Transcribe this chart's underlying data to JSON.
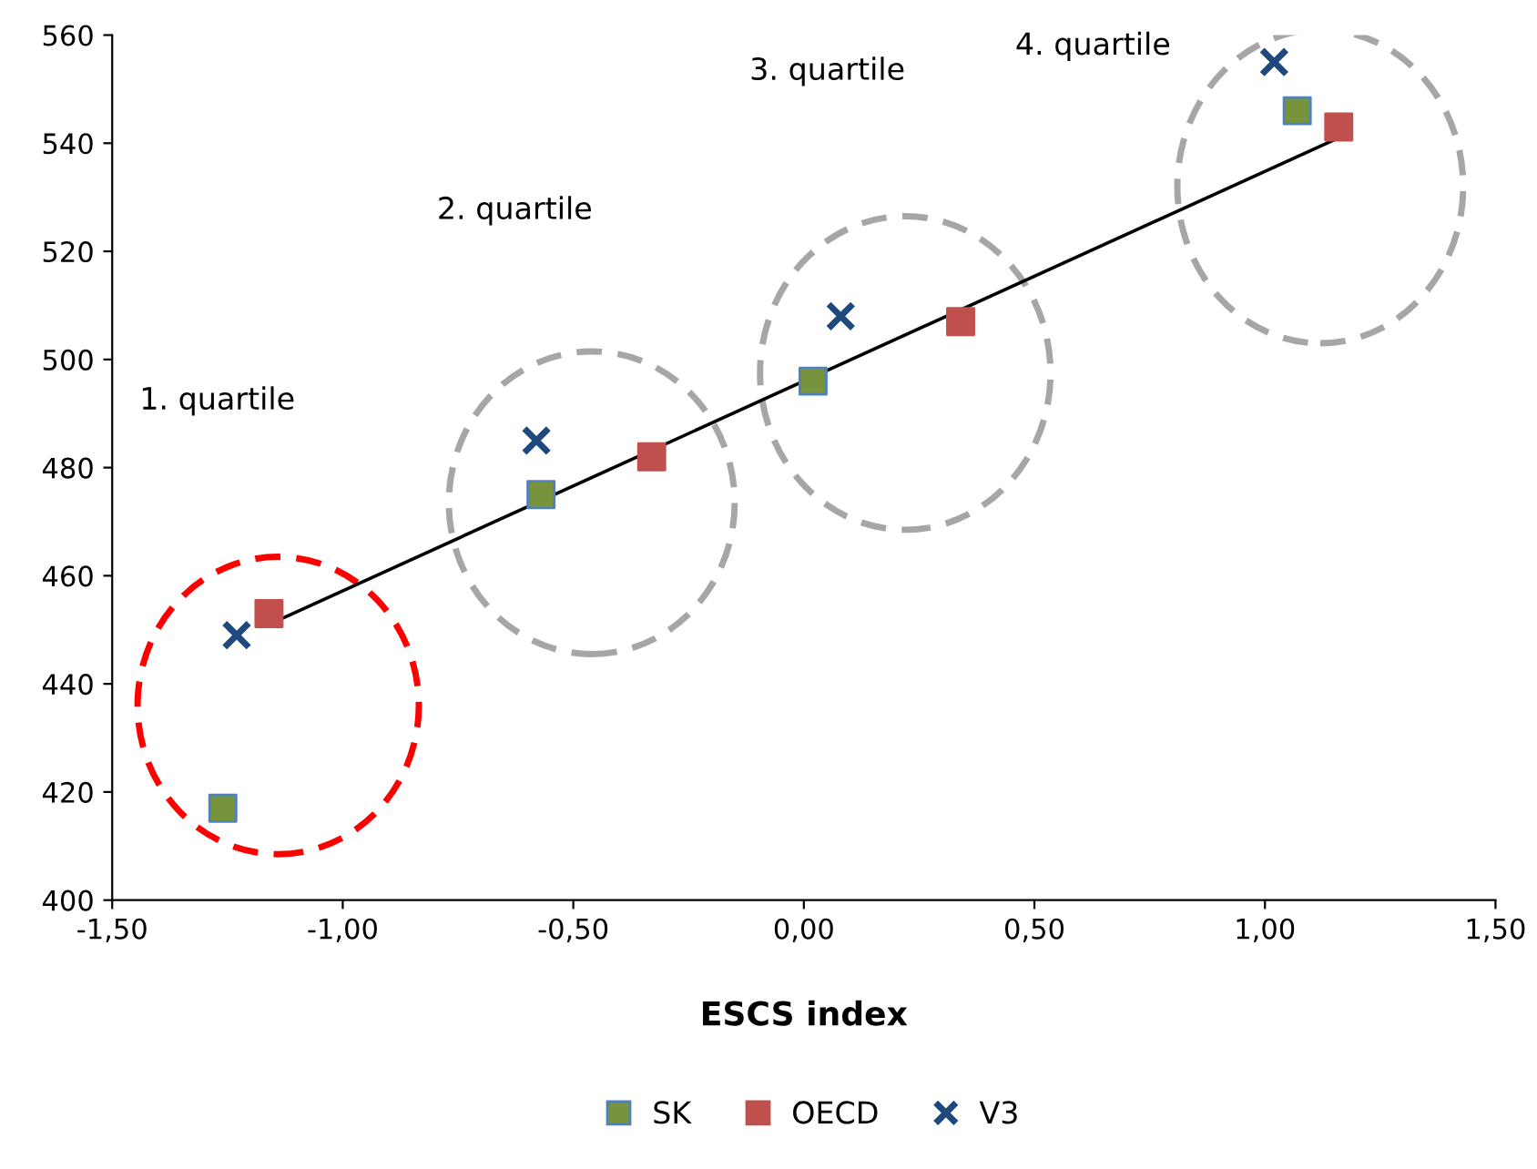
{
  "chart_data": {
    "type": "scatter",
    "xlabel": "ESCS index",
    "xlim": [
      -1.5,
      1.5
    ],
    "ylim": [
      400,
      560
    ],
    "xticks": [
      {
        "value": -1.5,
        "label": "-1,50"
      },
      {
        "value": -1.0,
        "label": "-1,00"
      },
      {
        "value": -0.5,
        "label": "-0,50"
      },
      {
        "value": 0,
        "label": "0,00"
      },
      {
        "value": 0.5,
        "label": "0,50"
      },
      {
        "value": 1.0,
        "label": "1,00"
      },
      {
        "value": 1.5,
        "label": "1,50"
      }
    ],
    "yticks": [
      400,
      420,
      440,
      460,
      480,
      500,
      520,
      540,
      560
    ],
    "grid": false,
    "legend": "bottom",
    "series": [
      {
        "name": "SK",
        "color": "#77933c",
        "marker": "square",
        "x": [
          -1.26,
          -0.57,
          0.02,
          1.07
        ],
        "values": [
          417,
          475,
          496,
          546
        ]
      },
      {
        "name": "OECD",
        "color": "#c0504d",
        "marker": "square",
        "x": [
          -1.16,
          -0.33,
          0.34,
          1.16
        ],
        "values": [
          453,
          482,
          507,
          543
        ]
      },
      {
        "name": "V3",
        "color": "#1f497d",
        "marker": "cross",
        "x": [
          -1.23,
          -0.58,
          0.08,
          1.02
        ],
        "values": [
          449,
          485,
          508,
          555
        ]
      },
      {
        "type": "line",
        "color": "#000000",
        "marker": "none",
        "x": [
          -1.16,
          1.16
        ],
        "values": [
          451,
          541
        ]
      }
    ],
    "annotations": [
      "1. quartile",
      "2. quartile",
      "3. quartile",
      "4. quartile"
    ]
  }
}
